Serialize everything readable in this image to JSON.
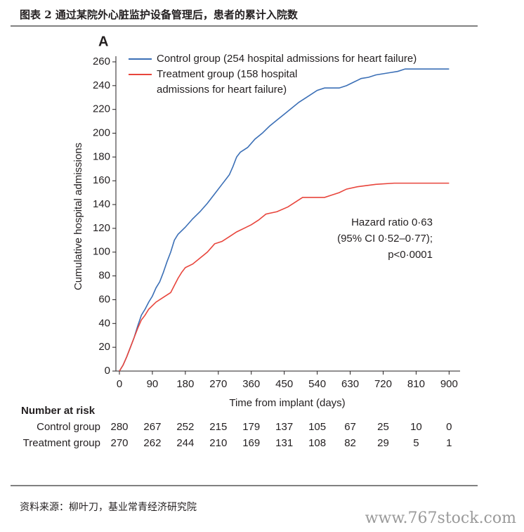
{
  "header": {
    "title": "图表 2 通过某院外心脏监护设备管理后，患者的累计入院数"
  },
  "chart_data": {
    "type": "line",
    "panel": "A",
    "x_label": "Time from implant (days)",
    "y_label": "Cumulative hospital admissions",
    "xlim": [
      0,
      930
    ],
    "ylim": [
      0,
      260
    ],
    "xticks": [
      0,
      90,
      180,
      270,
      360,
      450,
      540,
      630,
      720,
      810,
      900
    ],
    "yticks": [
      0,
      20,
      40,
      60,
      80,
      100,
      120,
      140,
      160,
      180,
      200,
      220,
      240,
      260
    ],
    "series": [
      {
        "name": "Control group (254 hospital admissions for heart failure)",
        "color": "#3b6fb6",
        "x": [
          0,
          10,
          20,
          30,
          40,
          50,
          60,
          70,
          80,
          90,
          100,
          110,
          120,
          130,
          140,
          150,
          160,
          180,
          200,
          220,
          240,
          260,
          280,
          300,
          310,
          320,
          330,
          350,
          370,
          390,
          410,
          430,
          450,
          470,
          490,
          510,
          540,
          560,
          600,
          620,
          640,
          660,
          680,
          700,
          740,
          760,
          780,
          900
        ],
        "values": [
          0,
          5,
          12,
          20,
          28,
          38,
          47,
          52,
          58,
          63,
          70,
          75,
          83,
          92,
          100,
          110,
          115,
          121,
          128,
          134,
          141,
          149,
          157,
          165,
          172,
          180,
          184,
          188,
          195,
          200,
          206,
          211,
          216,
          221,
          226,
          230,
          236,
          238,
          238,
          240,
          243,
          246,
          247,
          249,
          251,
          252,
          254,
          254
        ]
      },
      {
        "name": "Treatment group (158 hospital admissions for heart failure)",
        "color": "#e8453c",
        "x": [
          0,
          10,
          20,
          30,
          40,
          50,
          60,
          70,
          80,
          90,
          100,
          120,
          140,
          150,
          160,
          170,
          180,
          200,
          220,
          240,
          260,
          280,
          300,
          320,
          340,
          360,
          380,
          400,
          430,
          460,
          480,
          500,
          560,
          580,
          600,
          620,
          650,
          700,
          750,
          900
        ],
        "values": [
          0,
          5,
          12,
          20,
          28,
          36,
          43,
          47,
          52,
          55,
          58,
          62,
          66,
          72,
          78,
          83,
          87,
          90,
          95,
          100,
          107,
          109,
          113,
          117,
          120,
          123,
          127,
          132,
          134,
          138,
          142,
          146,
          146,
          148,
          150,
          153,
          155,
          157,
          158,
          158
        ]
      }
    ],
    "annotations": [
      "Hazard ratio 0·63",
      "(95% CI 0·52–0·77);",
      "p<0·0001"
    ],
    "risk_table": {
      "title": "Number at risk",
      "rows": [
        {
          "name": "Control group",
          "values": [
            280,
            267,
            252,
            215,
            179,
            137,
            105,
            67,
            25,
            10,
            0
          ]
        },
        {
          "name": "Treatment group",
          "values": [
            270,
            262,
            244,
            210,
            169,
            131,
            108,
            82,
            29,
            5,
            1
          ]
        }
      ]
    }
  },
  "source": "资料来源：柳叶刀，基业常青经济研究院",
  "watermark": "www.767stock.com"
}
